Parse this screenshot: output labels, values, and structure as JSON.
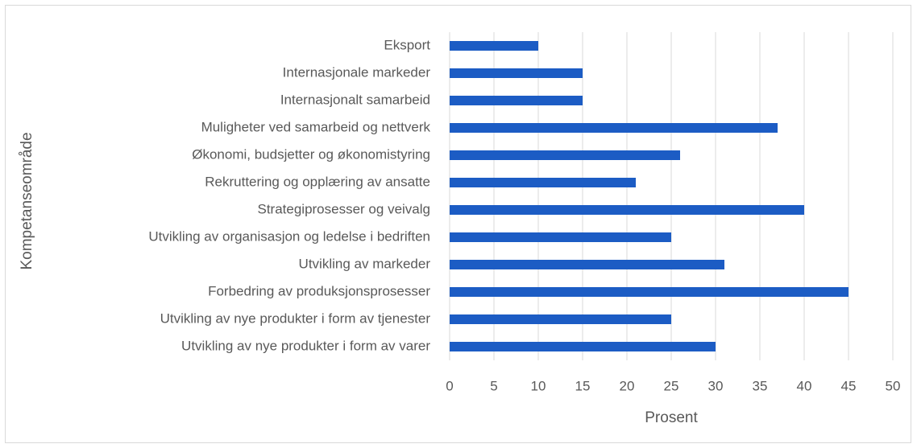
{
  "chart_data": {
    "type": "bar",
    "orientation": "horizontal",
    "categories": [
      "Eksport",
      "Internasjonale markeder",
      "Internasjonalt samarbeid",
      "Muligheter ved samarbeid og nettverk",
      "Økonomi, budsjetter og økonomistyring",
      "Rekruttering og opplæring av ansatte",
      "Strategiprosesser og veivalg",
      "Utvikling av organisasjon og ledelse i bedriften",
      "Utvikling av markeder",
      "Forbedring av produksjonsprosesser",
      "Utvikling av nye produkter i form av tjenester",
      "Utvikling av nye produkter i form av varer"
    ],
    "values": [
      10,
      15,
      15,
      37,
      26,
      21,
      40,
      25,
      31,
      45,
      25,
      30
    ],
    "color": "#1c5cc4",
    "xlim": [
      0,
      50
    ],
    "xticks": [
      0,
      5,
      10,
      15,
      20,
      25,
      30,
      35,
      40,
      45,
      50
    ],
    "xlabel": "Prosent",
    "ylabel": "Kompetanseområde",
    "grid": true
  }
}
